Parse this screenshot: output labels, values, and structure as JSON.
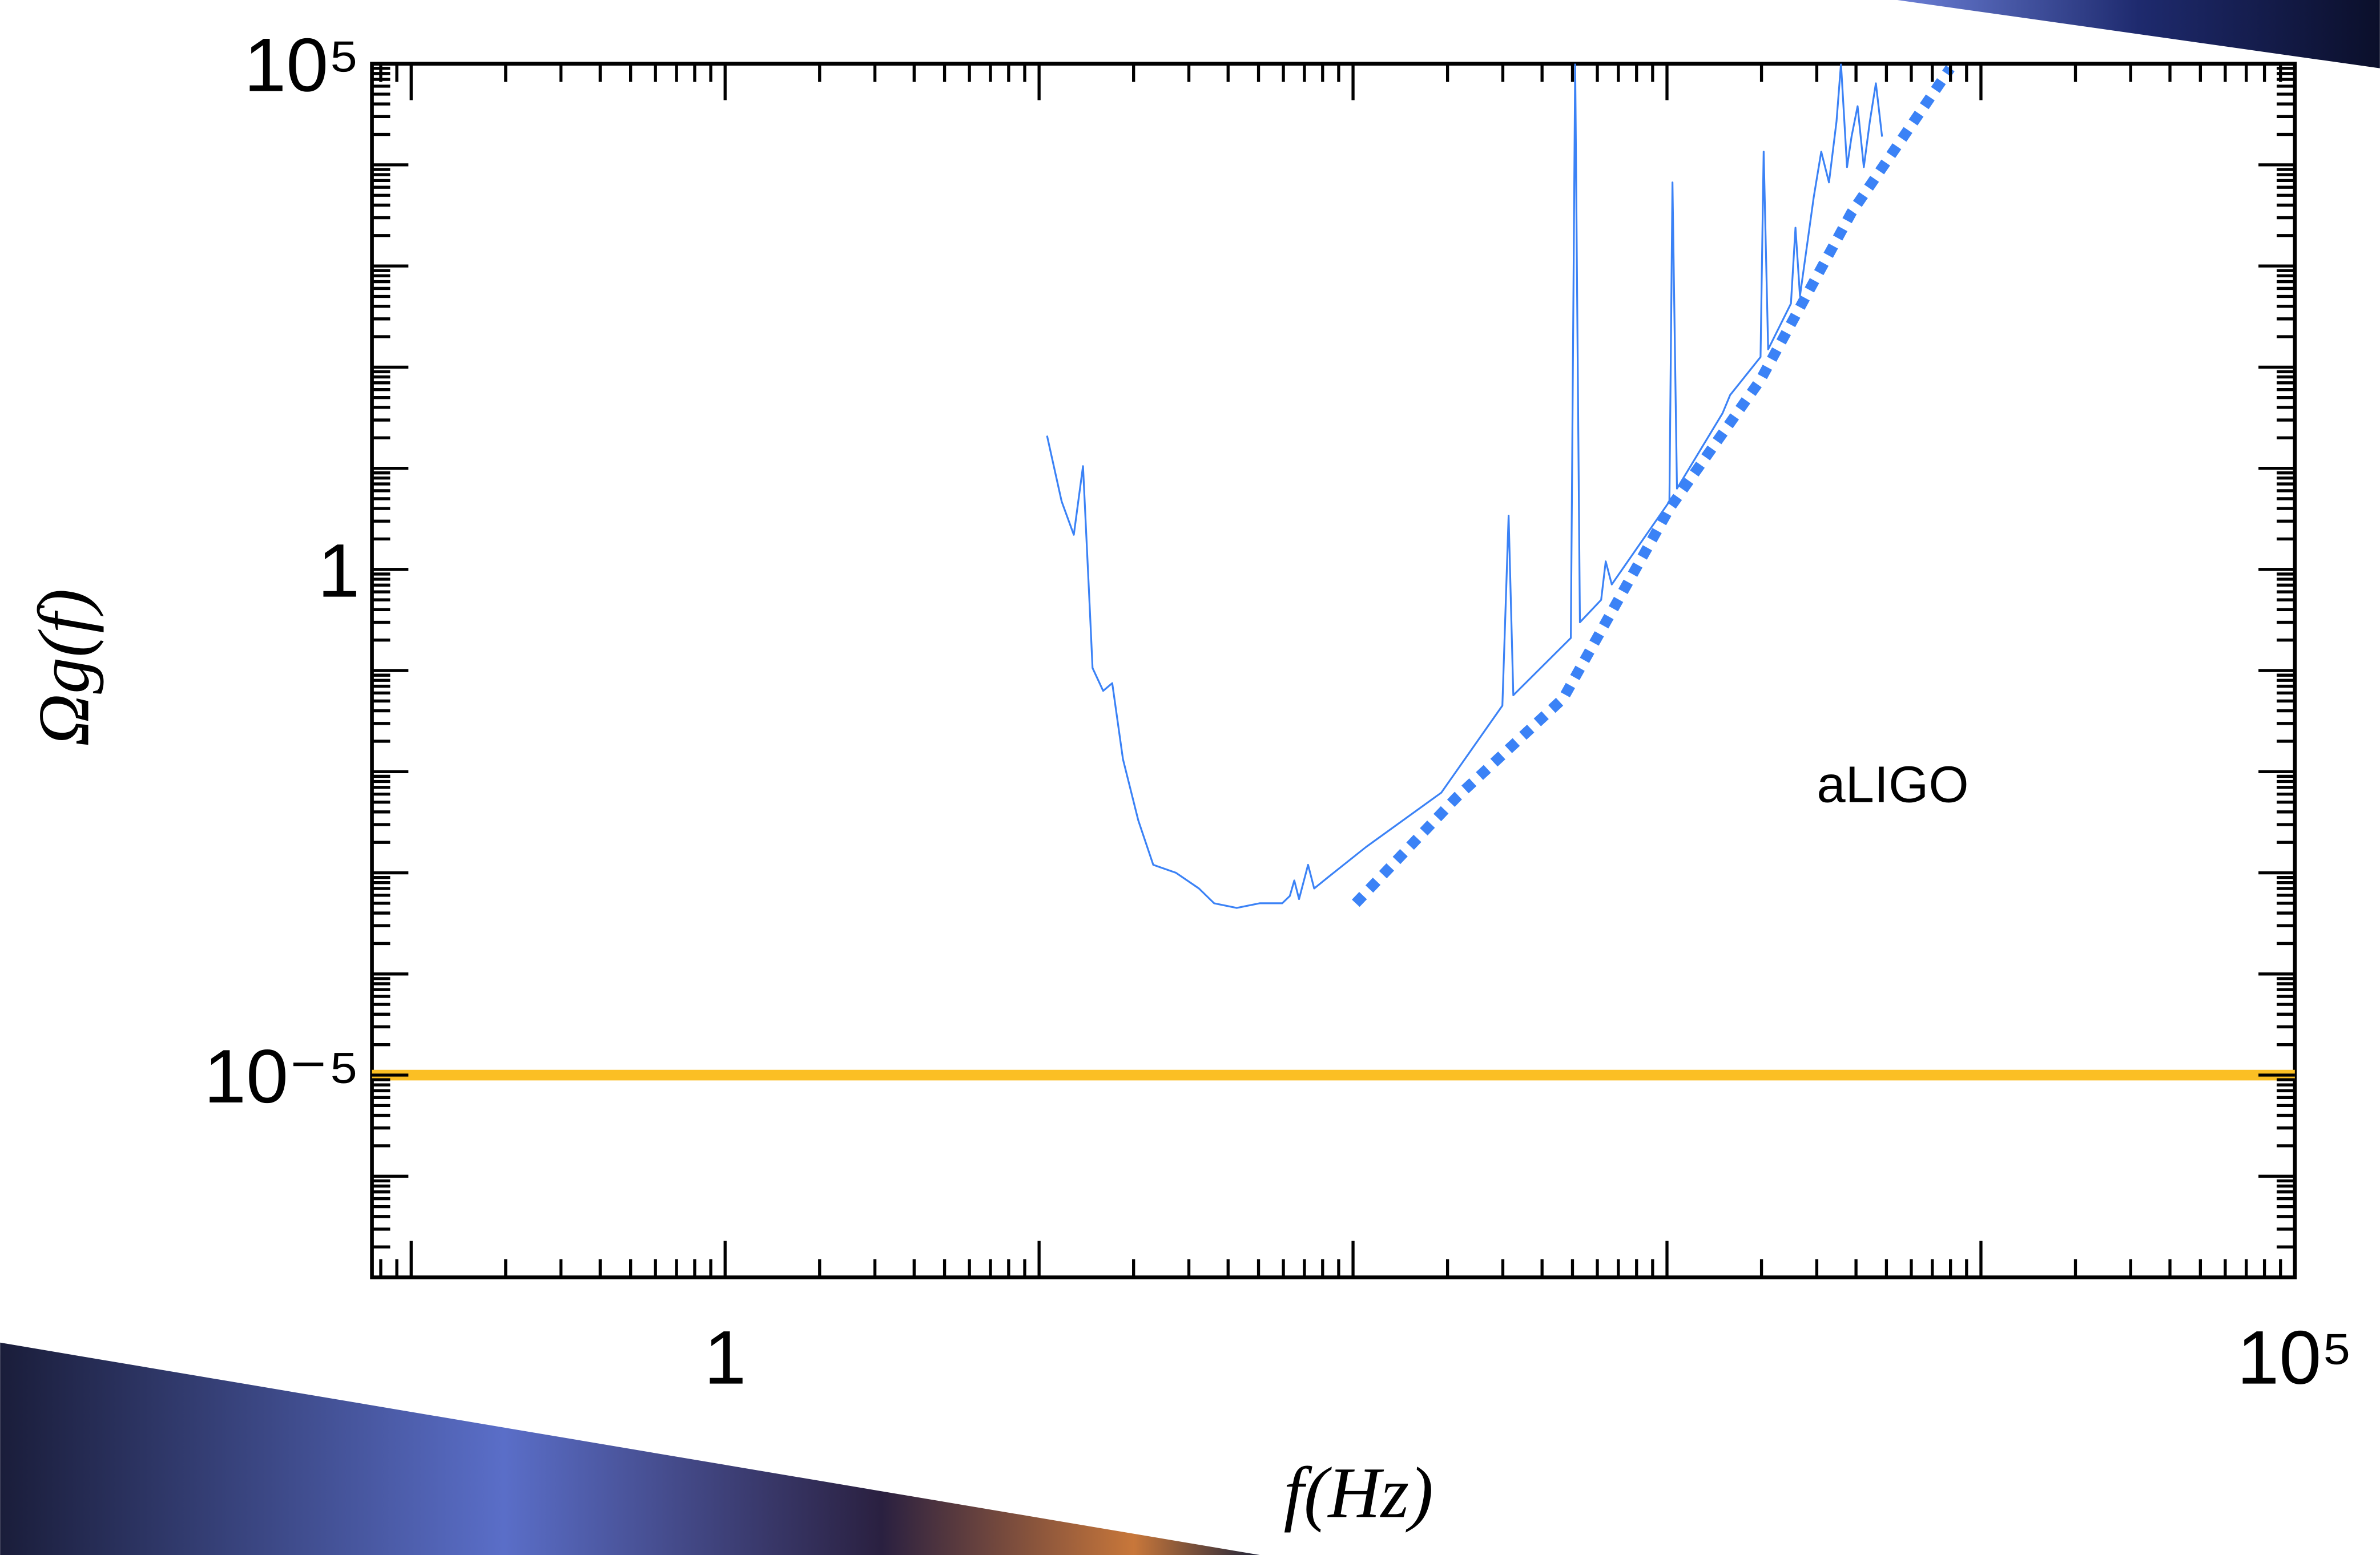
{
  "chart_data": {
    "type": "line",
    "xlabel": "f(Hz)",
    "ylabel": "Ωg(f)",
    "xscale": "log",
    "yscale": "log",
    "xlim": [
      0.075,
      100000
    ],
    "ylim": [
      1e-07,
      100000
    ],
    "xticks": [
      {
        "value": 0.1,
        "label": null
      },
      {
        "value": 1,
        "label": "1"
      },
      {
        "value": 10,
        "label": null
      },
      {
        "value": 100,
        "label": null
      },
      {
        "value": 1000,
        "label": null
      },
      {
        "value": 10000,
        "label": null
      },
      {
        "value": 100000,
        "label": "10⁵"
      }
    ],
    "yticks": [
      {
        "value": 1e-06,
        "label": null
      },
      {
        "value": 1e-05,
        "label": "10⁻⁵"
      },
      {
        "value": 0.0001,
        "label": null
      },
      {
        "value": 0.001,
        "label": null
      },
      {
        "value": 0.01,
        "label": null
      },
      {
        "value": 0.1,
        "label": null
      },
      {
        "value": 1,
        "label": "1"
      },
      {
        "value": 10,
        "label": null
      },
      {
        "value": 100,
        "label": null
      },
      {
        "value": 1000,
        "label": null
      },
      {
        "value": 10000,
        "label": null
      },
      {
        "value": 100000,
        "label": "10⁵"
      }
    ],
    "annotations": [
      {
        "text": "aLIGO",
        "x": 3000,
        "y": 0.005,
        "color": "#3b82f6"
      }
    ],
    "series": [
      {
        "color": "#3b82f6",
        "width": 1.2,
        "x": [
          10.6,
          11.8,
          12.9,
          13.8,
          14.5,
          14.8,
          16,
          17.1,
          18.5,
          20.7,
          23.1,
          27.3,
          32.3,
          36.1,
          42.6,
          50.4,
          59.5,
          62.9,
          65,
          67.3,
          71.9,
          75.2,
          83.1,
          110,
          191,
          299,
          313,
          324,
          494,
          510,
          528,
          617,
          638,
          667,
          1018,
          1041,
          1076,
          1503,
          1589,
          1986,
          2032,
          2100,
          2482,
          2566,
          2652,
          2933,
          3100,
          3281,
          3467,
          3583,
          3745,
          3871,
          4047,
          4236,
          4427,
          4628,
          4842
        ],
        "values": [
          21,
          4.7,
          2.2,
          10.5,
          0.42,
          0.106,
          0.063,
          0.075,
          0.0133,
          0.0033,
          0.0012,
          0.001,
          0.0007,
          0.0005,
          0.00045,
          0.0005,
          0.0005,
          0.00059,
          0.00084,
          0.00055,
          0.0012,
          0.0007,
          0.0009,
          0.0018,
          0.0062,
          0.045,
          3.4,
          0.057,
          0.21,
          100000,
          0.3,
          0.5,
          1.2,
          0.71,
          4.7,
          6700,
          6.3,
          35,
          53,
          126,
          13500,
          150,
          425,
          2390,
          505,
          4770,
          13500,
          6700,
          26900,
          100000,
          9500,
          19000,
          38000,
          9500,
          26900,
          64000,
          19000
        ]
      },
      {
        "color": "#3b82f6",
        "width": 7,
        "dashed": true,
        "x": [
          102,
          214,
          467,
          1018,
          1986,
          3871,
          7980
        ],
        "values": [
          0.0005,
          0.0056,
          0.053,
          4.0,
          75,
          3380,
          90000
        ]
      },
      {
        "color": "#fbbf24",
        "width": 7,
        "x": [
          0.075,
          100000
        ],
        "values": [
          1e-05,
          1e-05
        ]
      }
    ]
  }
}
